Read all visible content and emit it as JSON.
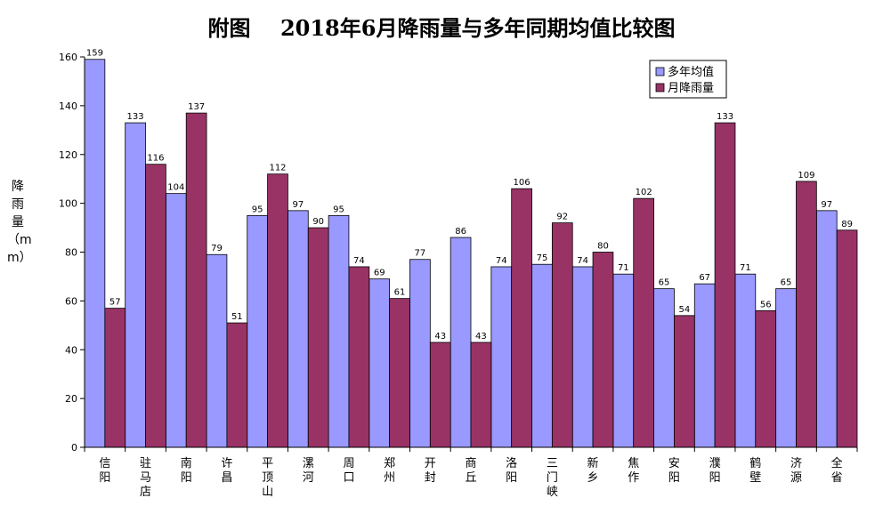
{
  "chart_data": {
    "type": "bar",
    "title": "附图    2018年6月降雨量与多年同期均值比较图",
    "ylabel": "降雨量（mm）",
    "xlabel": "",
    "ylim": [
      0,
      160
    ],
    "yticks": [
      0,
      20,
      40,
      60,
      80,
      100,
      120,
      140,
      160
    ],
    "grid": false,
    "legend": "top-right",
    "categories": [
      "信阳",
      "驻马店",
      "南阳",
      "许昌",
      "平顶山",
      "漯河",
      "周口",
      "郑州",
      "开封",
      "商丘",
      "洛阳",
      "三门峡",
      "新乡",
      "焦作",
      "安阳",
      "濮阳",
      "鹤壁",
      "济源",
      "全省"
    ],
    "series": [
      {
        "name": "多年均值",
        "color": "#9999ff",
        "values": [
          159,
          133,
          104,
          79,
          95,
          97,
          95,
          69,
          77,
          86,
          74,
          75,
          74,
          71,
          65,
          67,
          71,
          65,
          97
        ]
      },
      {
        "name": "月降雨量",
        "color": "#993366",
        "values": [
          57,
          116,
          137,
          51,
          112,
          90,
          74,
          61,
          43,
          43,
          106,
          92,
          80,
          102,
          54,
          133,
          56,
          109,
          89
        ]
      }
    ]
  }
}
